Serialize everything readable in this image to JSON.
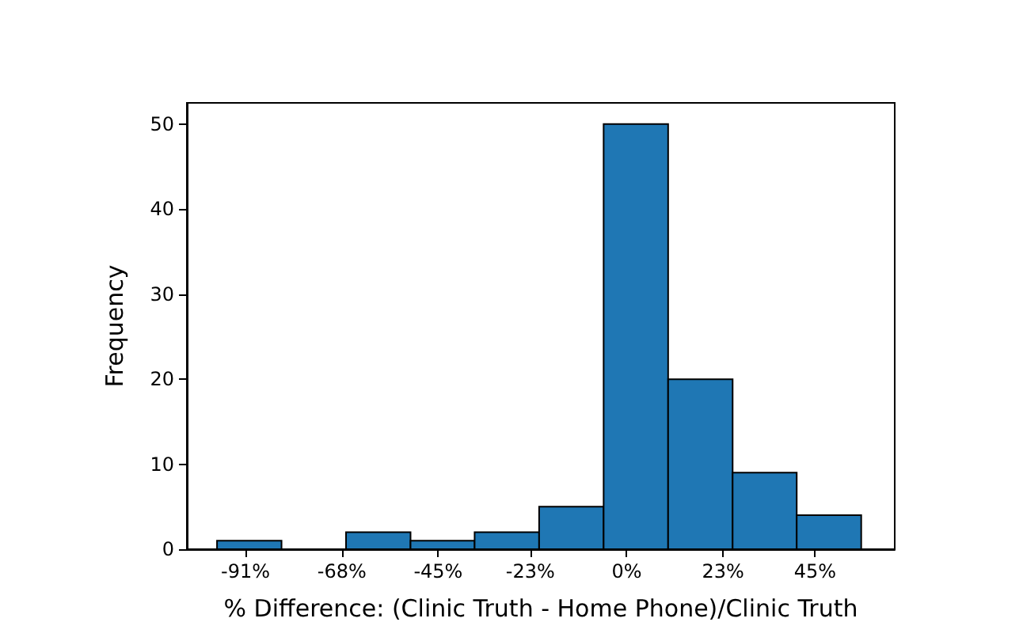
{
  "chart_data": {
    "type": "histogram",
    "xlabel": "% Difference: (Clinic Truth - Home Phone)/Clinic Truth",
    "ylabel": "Frequency",
    "bins": [
      -97.8,
      -82.4,
      -67.0,
      -51.6,
      -36.3,
      -20.9,
      -5.5,
      9.9,
      25.3,
      40.6,
      56.0
    ],
    "values": [
      1,
      0,
      2,
      1,
      2,
      5,
      50,
      20,
      9,
      4
    ],
    "color": "#1f77b4",
    "xlim": [
      -105,
      64
    ],
    "xticks": [
      {
        "value": -91,
        "label": "-91%"
      },
      {
        "value": -68,
        "label": "-68%"
      },
      {
        "value": -45,
        "label": "-45%"
      },
      {
        "value": -23,
        "label": "-23%"
      },
      {
        "value": 0,
        "label": "0%"
      },
      {
        "value": 23,
        "label": "23%"
      },
      {
        "value": 45,
        "label": "45%"
      }
    ],
    "ylim": [
      0,
      52.5
    ],
    "yticks": [
      0,
      10,
      20,
      30,
      40,
      50
    ],
    "grid": false
  }
}
